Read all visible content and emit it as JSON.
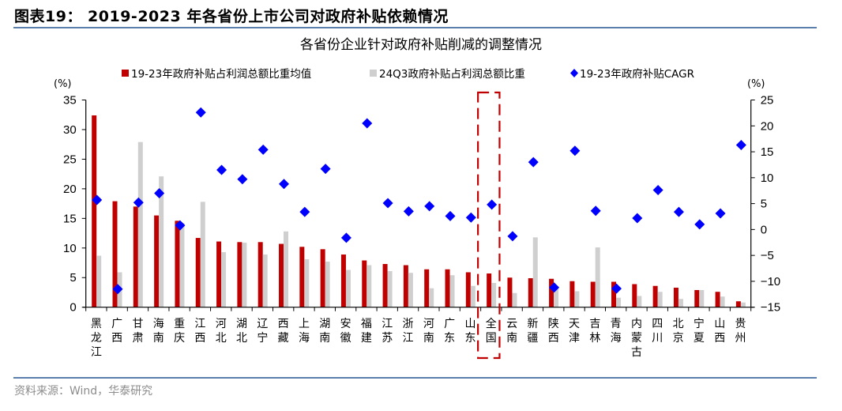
{
  "figure": {
    "title": "图表19：  2019-2023 年各省份上市公司对政府补贴依赖情况",
    "source": "资料来源：Wind，华泰研究"
  },
  "colors": {
    "rule": "#5b7fac",
    "series_red": "#c00000",
    "series_gray": "#cfcfcf",
    "series_blue": "#0000ff",
    "highlight_box": "#c00000"
  },
  "chart_data": {
    "type": "bar",
    "title": "各省份企业针对政府补贴削减的调整情况",
    "xlabel": "",
    "ylabel": "(%)",
    "ylabel_right": "(%)",
    "ylim": [
      0,
      35
    ],
    "yticks": [
      0,
      5,
      10,
      15,
      20,
      25,
      30,
      35
    ],
    "ylim_right": [
      -15,
      25
    ],
    "yticks_right": [
      -15,
      -10,
      -5,
      0,
      5,
      10,
      15,
      20,
      25
    ],
    "grid": false,
    "legend_position": "top",
    "highlight_category": "全国",
    "categories": [
      "黑龙江",
      "广西",
      "甘肃",
      "海南",
      "重庆",
      "江西",
      "河北",
      "湖北",
      "辽宁",
      "西藏",
      "上海",
      "湖南",
      "安徽",
      "福建",
      "江苏",
      "浙江",
      "河南",
      "广东",
      "山东",
      "全国",
      "云南",
      "新疆",
      "陕西",
      "天津",
      "吉林",
      "青海",
      "内蒙古",
      "四川",
      "北京",
      "宁夏",
      "山西",
      "贵州"
    ],
    "series": [
      {
        "name": "19-23年政府补贴占利润总额比重均值",
        "type": "bar",
        "axis": "left",
        "values": [
          32.4,
          17.9,
          17.0,
          15.5,
          14.6,
          11.7,
          11.1,
          11.0,
          11.0,
          10.7,
          10.2,
          9.8,
          8.9,
          7.9,
          7.3,
          7.1,
          6.4,
          6.4,
          5.9,
          5.7,
          5.0,
          4.9,
          4.8,
          4.4,
          4.3,
          4.3,
          3.9,
          3.6,
          3.3,
          2.9,
          2.6,
          1.0
        ]
      },
      {
        "name": "24Q3政府补贴占利润总额比重",
        "type": "bar",
        "axis": "left",
        "values": [
          8.7,
          5.9,
          27.9,
          22.1,
          14.2,
          17.8,
          9.3,
          10.9,
          8.9,
          12.8,
          8.1,
          7.7,
          6.3,
          7.1,
          6.1,
          5.8,
          3.2,
          5.4,
          3.6,
          4.1,
          2.4,
          11.8,
          3.2,
          2.7,
          10.1,
          1.6,
          1.9,
          2.6,
          1.4,
          2.9,
          1.8,
          0.8
        ]
      },
      {
        "name": "19-23年政府补贴CAGR",
        "type": "scatter",
        "axis": "right",
        "values": [
          5.7,
          -11.5,
          5.2,
          7.0,
          0.8,
          22.6,
          11.5,
          9.7,
          15.4,
          8.8,
          3.4,
          11.7,
          -1.6,
          20.5,
          5.1,
          3.5,
          4.5,
          2.6,
          2.3,
          4.8,
          -1.3,
          13.0,
          -11.2,
          15.2,
          3.6,
          -11.4,
          2.2,
          7.6,
          3.4,
          1.0,
          3.1,
          16.3
        ]
      }
    ]
  }
}
